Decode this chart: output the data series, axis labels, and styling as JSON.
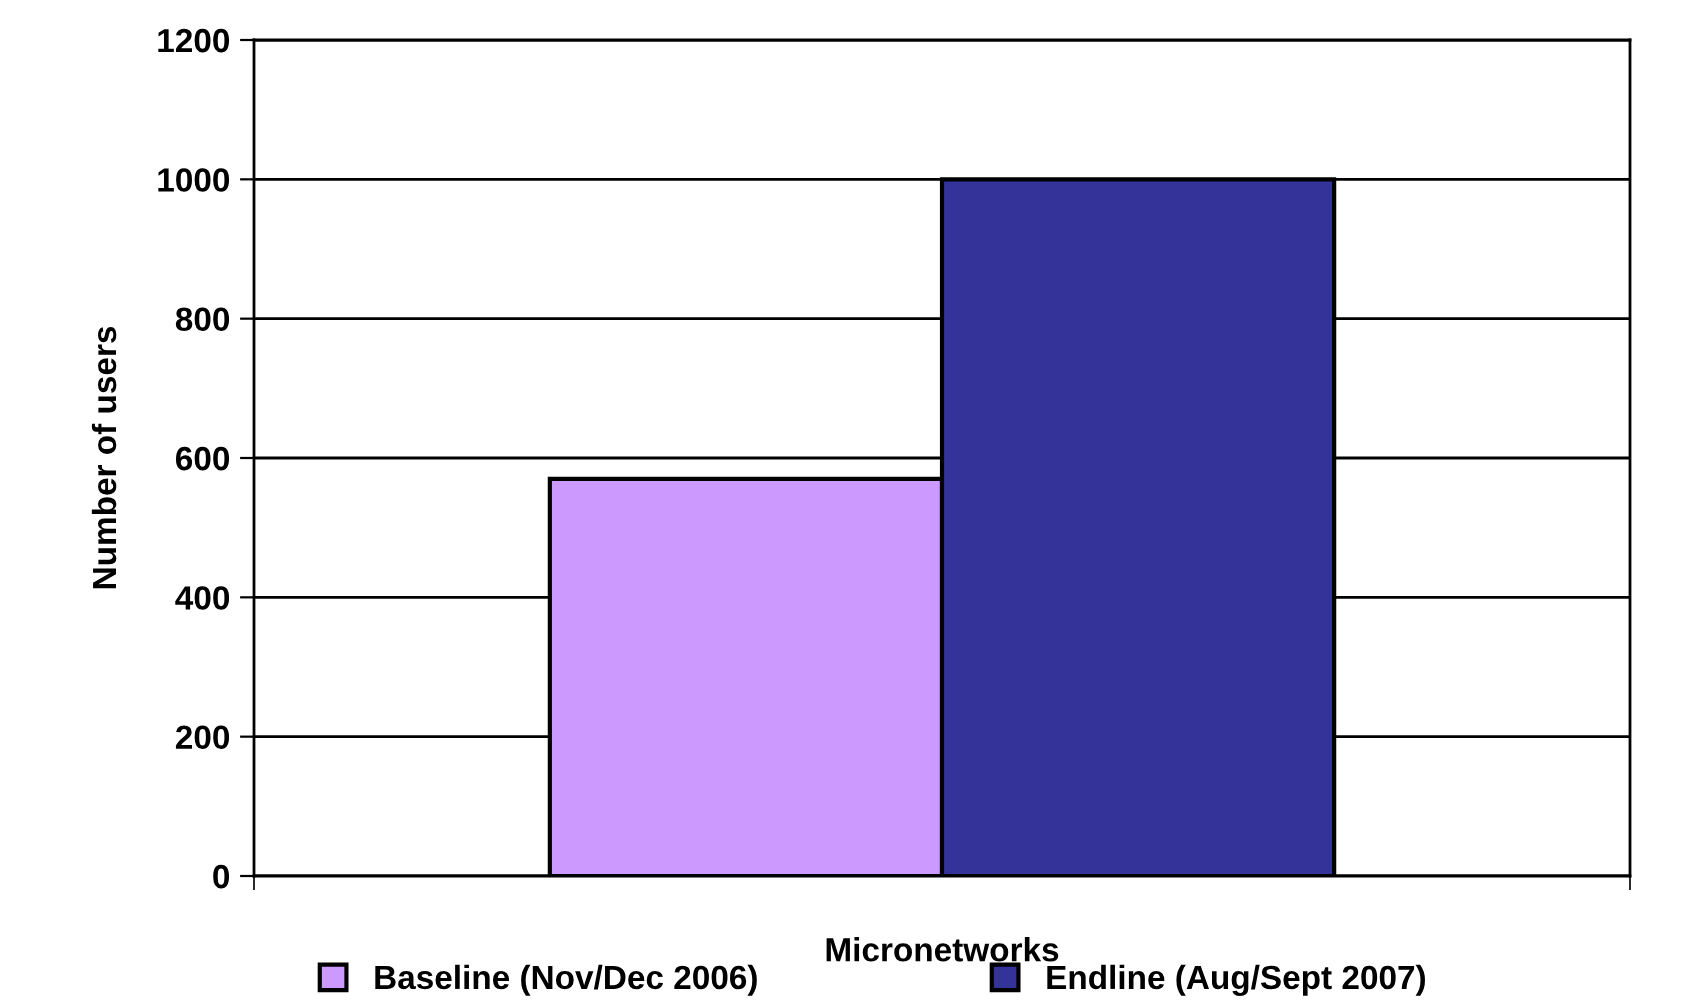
{
  "chart_data": {
    "type": "bar",
    "ylabel": "Number of users",
    "categories": [
      "Micronetworks"
    ],
    "series": [
      {
        "name": "Baseline (Nov/Dec 2006)",
        "color": "#cc99ff",
        "values": [
          570
        ]
      },
      {
        "name": "Endline (Aug/Sept 2007)",
        "color": "#333399",
        "values": [
          1000
        ]
      }
    ],
    "ylim": [
      0,
      1200
    ],
    "yticks": [
      0,
      200,
      400,
      600,
      800,
      1000,
      1200
    ],
    "grid": "y",
    "legend": "bottom"
  }
}
